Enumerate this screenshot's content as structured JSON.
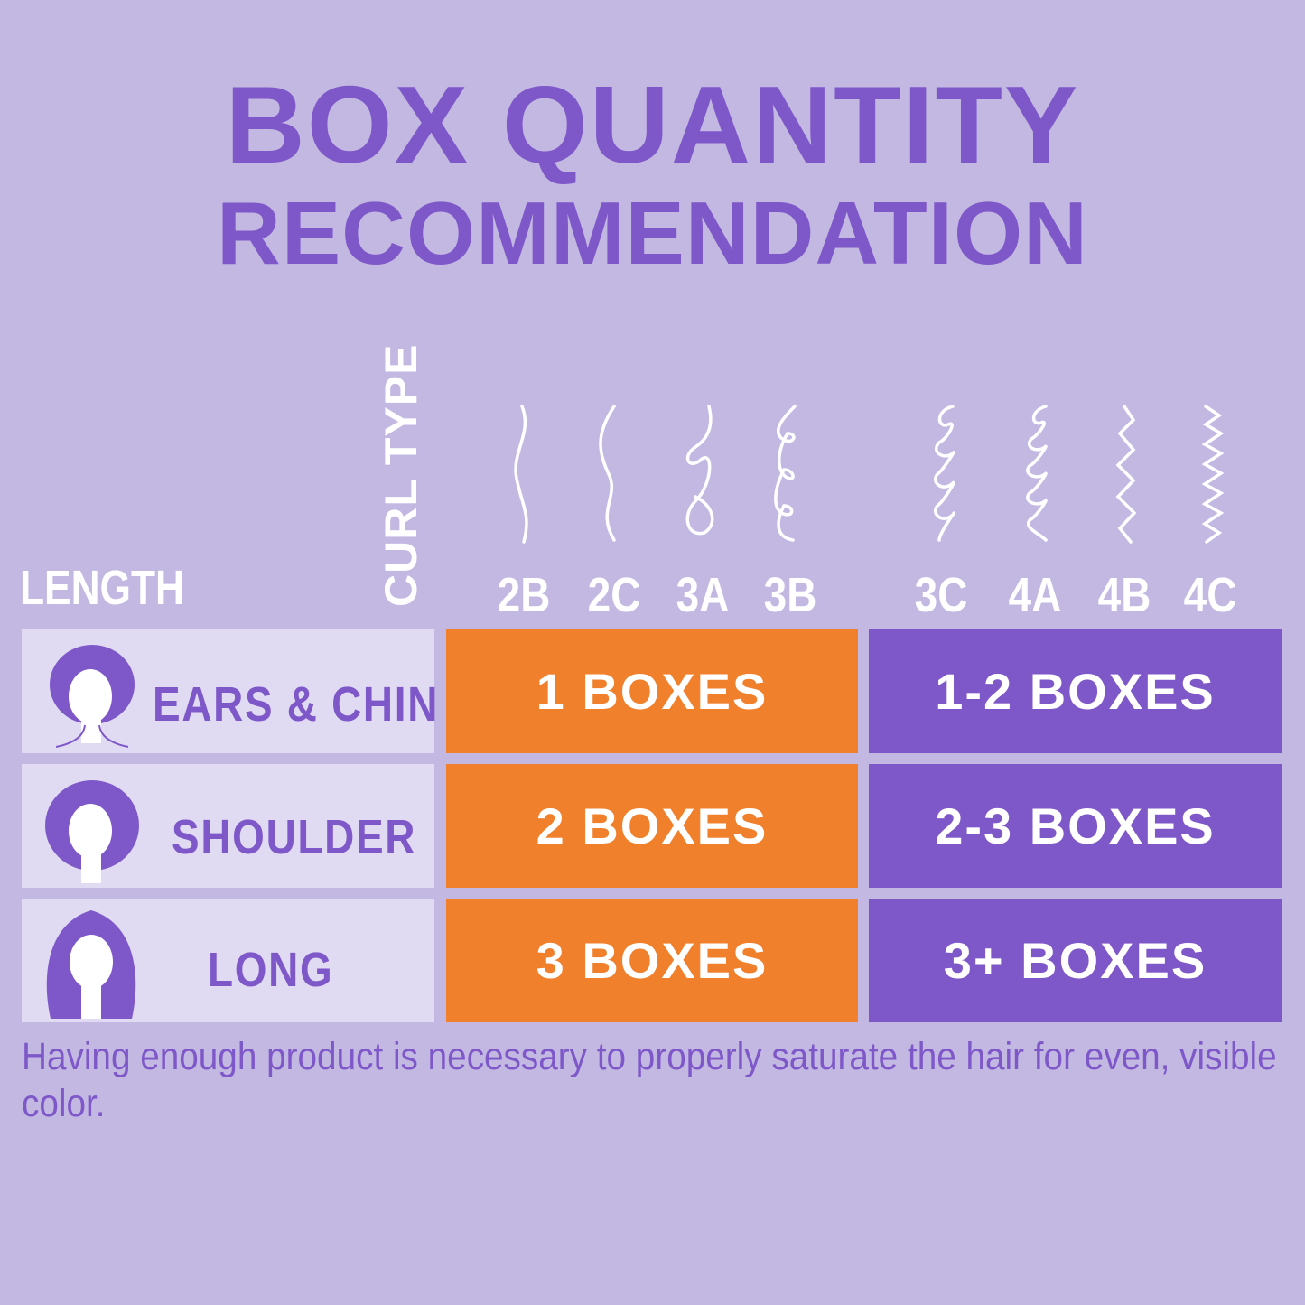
{
  "title": {
    "line1": "BOX QUANTITY",
    "line2": "RECOMMENDATION"
  },
  "headers": {
    "length": "LENGTH",
    "curl_type": "CURL TYPE"
  },
  "curl_types": [
    {
      "code": "2B",
      "icon": "wave-curl-icon"
    },
    {
      "code": "2C",
      "icon": "wave-curl-icon"
    },
    {
      "code": "3A",
      "icon": "loop-curl-icon"
    },
    {
      "code": "3B",
      "icon": "loop-curl-icon"
    },
    {
      "code": "3C",
      "icon": "coil-curl-icon"
    },
    {
      "code": "4A",
      "icon": "coil-curl-icon"
    },
    {
      "code": "4B",
      "icon": "zigzag-curl-icon"
    },
    {
      "code": "4C",
      "icon": "zigzag-curl-icon"
    }
  ],
  "rows": [
    {
      "length": "EARS & CHIN",
      "icon": "short-hair-face-icon",
      "group1": "1 BOXES",
      "group2": "1-2 BOXES"
    },
    {
      "length": "SHOULDER",
      "icon": "shoulder-hair-face-icon",
      "group1": "2 BOXES",
      "group2": "2-3 BOXES"
    },
    {
      "length": "LONG",
      "icon": "long-hair-face-icon",
      "group1": "3 BOXES",
      "group2": "3+ BOXES"
    }
  ],
  "note": "Having enough product is necessary to properly saturate the hair for even, visible color.",
  "colors": {
    "background": "#c3b8e2",
    "purple": "#7e57c8",
    "orange": "#f0802c",
    "light": "#e0daf2"
  }
}
